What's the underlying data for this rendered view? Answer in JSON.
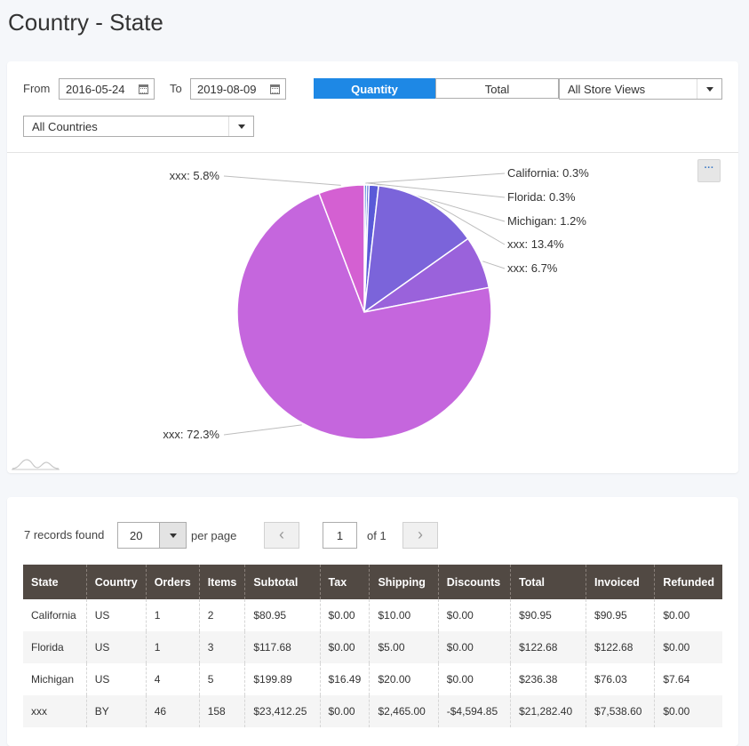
{
  "page": {
    "title": "Country - State"
  },
  "filters": {
    "from_label": "From",
    "from_value": "2016-05-24",
    "to_label": "To",
    "to_value": "2019-08-09",
    "metric_options": [
      "Quantity",
      "Total"
    ],
    "metric_selected": "Quantity",
    "store_view": "All Store Views",
    "country": "All Countries",
    "menu_label": "···"
  },
  "chart_data": {
    "type": "pie",
    "slices": [
      {
        "label": "California",
        "value": 0.3,
        "text": "California: 0.3%",
        "color": "#3a7bd5"
      },
      {
        "label": "Florida",
        "value": 0.3,
        "text": "Florida: 0.3%",
        "color": "#4b66d6"
      },
      {
        "label": "Michigan",
        "value": 1.2,
        "text": "Michigan: 1.2%",
        "color": "#5a5ad8"
      },
      {
        "label": "xxx",
        "value": 13.4,
        "text": "xxx: 13.4%",
        "color": "#7b64da"
      },
      {
        "label": "xxx",
        "value": 6.7,
        "text": "xxx: 6.7%",
        "color": "#9a62db"
      },
      {
        "label": "xxx",
        "value": 72.3,
        "text": "xxx: 72.3%",
        "color": "#c566dd"
      },
      {
        "label": "xxx",
        "value": 5.8,
        "text": "xxx: 5.8%",
        "color": "#d460d2"
      }
    ]
  },
  "pager": {
    "records_text": "7 records found",
    "per_page_value": "20",
    "per_page_label": "per page",
    "prev_icon": "‹",
    "next_icon": "›",
    "current_page": "1",
    "of_text": "of 1"
  },
  "table": {
    "columns": [
      "State",
      "Country",
      "Orders",
      "Items",
      "Subtotal",
      "Tax",
      "Shipping",
      "Discounts",
      "Total",
      "Invoiced",
      "Refunded"
    ],
    "rows": [
      [
        "California",
        "US",
        "1",
        "2",
        "$80.95",
        "$0.00",
        "$10.00",
        "$0.00",
        "$90.95",
        "$90.95",
        "$0.00"
      ],
      [
        "Florida",
        "US",
        "1",
        "3",
        "$117.68",
        "$0.00",
        "$5.00",
        "$0.00",
        "$122.68",
        "$122.68",
        "$0.00"
      ],
      [
        "Michigan",
        "US",
        "4",
        "5",
        "$199.89",
        "$16.49",
        "$20.00",
        "$0.00",
        "$236.38",
        "$76.03",
        "$7.64"
      ],
      [
        "xxx",
        "BY",
        "46",
        "158",
        "$23,412.25",
        "$0.00",
        "$2,465.00",
        "-$4,594.85",
        "$21,282.40",
        "$7,538.60",
        "$0.00"
      ]
    ]
  }
}
